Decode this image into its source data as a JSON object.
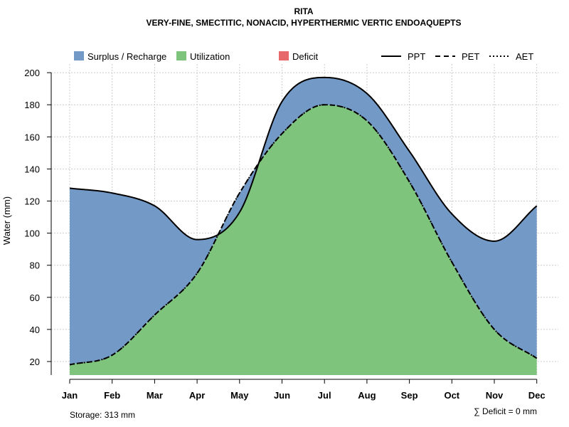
{
  "chart_data": {
    "type": "area",
    "title": "RITA",
    "subtitle": "VERY-FINE, SMECTITIC, NONACID, HYPERTHERMIC VERTIC ENDOAQUEPTS",
    "xlabel": "",
    "ylabel": "Water (mm)",
    "categories": [
      "Jan",
      "Feb",
      "Mar",
      "Apr",
      "May",
      "Jun",
      "Jul",
      "Aug",
      "Sep",
      "Oct",
      "Nov",
      "Dec"
    ],
    "ylim": [
      12,
      200
    ],
    "yticks": [
      20,
      40,
      60,
      80,
      100,
      120,
      140,
      160,
      180,
      200
    ],
    "grid": true,
    "series": [
      {
        "name": "PPT",
        "style": "solid",
        "values": [
          128,
          125,
          117,
          96,
          113,
          182,
          197,
          187,
          151,
          112,
          95,
          117
        ]
      },
      {
        "name": "PET",
        "style": "dashed",
        "values": [
          18,
          24,
          49,
          75,
          125,
          162,
          180,
          170,
          132,
          82,
          40,
          22
        ]
      },
      {
        "name": "AET",
        "style": "dotted",
        "values": [
          18,
          24,
          49,
          75,
          125,
          162,
          180,
          170,
          132,
          82,
          40,
          22
        ]
      }
    ],
    "areas": [
      {
        "name": "Surplus / Recharge",
        "color": "#7399c6"
      },
      {
        "name": "Utilization",
        "color": "#7fc47c"
      },
      {
        "name": "Deficit",
        "color": "#e8696b"
      }
    ],
    "line_legend": [
      "PPT",
      "PET",
      "AET"
    ],
    "storage_note": "Storage: 313 mm",
    "deficit_note": "∑ Deficit = 0 mm"
  }
}
